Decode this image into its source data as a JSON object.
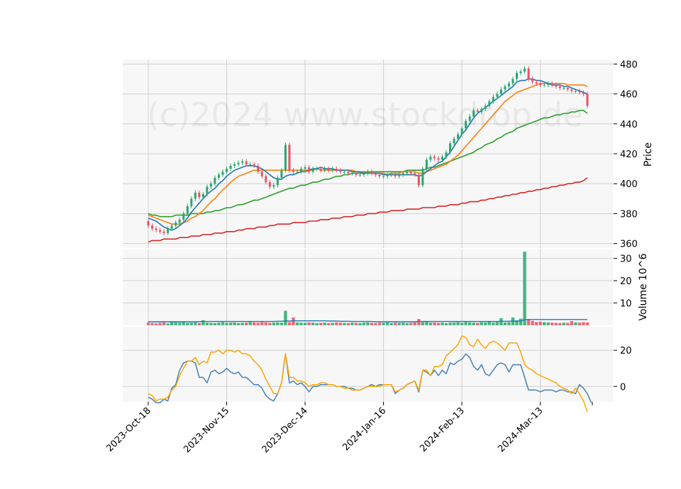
{
  "chart_data": {
    "type": "candlestick",
    "watermark": "(c)2024 www.stockdrop.de",
    "xticks": [
      "2023-Oct-18",
      "2023-Nov-15",
      "2023-Dec-14",
      "2024-Jan-16",
      "2024-Feb-13",
      "2024-Mar-13"
    ],
    "price_panel": {
      "ylabel": "Price",
      "ylim": [
        357,
        483
      ],
      "yticks": [
        "360",
        "380",
        "400",
        "420",
        "440",
        "460",
        "480"
      ],
      "close": [
        372,
        370,
        369,
        368,
        367,
        370,
        372,
        374,
        376,
        380,
        385,
        390,
        394,
        391,
        393,
        398,
        400,
        404,
        406,
        408,
        410,
        412,
        413,
        414,
        415,
        413,
        413,
        412,
        408,
        405,
        401,
        398,
        399,
        404,
        409,
        426,
        409,
        408,
        408,
        410,
        411,
        408,
        410,
        410,
        409,
        410,
        409,
        410,
        409,
        408,
        408,
        407,
        407,
        406,
        406,
        407,
        408,
        407,
        406,
        405,
        405,
        406,
        406,
        405,
        406,
        407,
        408,
        407,
        406,
        399,
        410,
        416,
        418,
        417,
        416,
        418,
        421,
        427,
        430,
        433,
        437,
        442,
        445,
        449,
        448,
        450,
        452,
        455,
        458,
        460,
        463,
        465,
        467,
        470,
        474,
        475,
        477,
        470,
        468,
        467,
        466,
        466,
        467,
        466,
        465,
        464,
        464,
        463,
        462,
        462,
        461,
        460,
        452
      ],
      "series": [
        {
          "name": "MA10",
          "color": "#1f77b4",
          "values": [
            377,
            376,
            375,
            373,
            371,
            370,
            369,
            370,
            372,
            374,
            377,
            381,
            384,
            387,
            390,
            393,
            395,
            397,
            400,
            402,
            405,
            407,
            409,
            410,
            411,
            412,
            412,
            412,
            411,
            410,
            408,
            406,
            404,
            403,
            403,
            405,
            406,
            406,
            407,
            408,
            408,
            409,
            410,
            410,
            411,
            410,
            410,
            410,
            409,
            409,
            409,
            409,
            408,
            408,
            408,
            407,
            407,
            407,
            407,
            407,
            406,
            406,
            406,
            406,
            406,
            406,
            406,
            406,
            406,
            405,
            406,
            408,
            410,
            412,
            414,
            415,
            418,
            421,
            425,
            429,
            433,
            436,
            440,
            444,
            447,
            449,
            451,
            453,
            455,
            457,
            459,
            461,
            463,
            465,
            468,
            469,
            469,
            470,
            470,
            469,
            469,
            468,
            467,
            466,
            466,
            466,
            465,
            465,
            464,
            463,
            462,
            461,
            460
          ]
        },
        {
          "name": "MA20",
          "color": "#ff7f0e",
          "values": [
            379,
            378,
            377,
            376,
            375,
            374,
            373,
            373,
            373,
            374,
            375,
            377,
            378,
            380,
            382,
            385,
            388,
            390,
            393,
            396,
            398,
            401,
            403,
            405,
            406,
            407,
            408,
            409,
            409,
            409,
            409,
            409,
            409,
            409,
            409,
            409,
            409,
            409,
            409,
            409,
            409,
            409,
            409,
            410,
            409,
            409,
            409,
            409,
            409,
            409,
            409,
            409,
            409,
            408,
            408,
            408,
            408,
            407,
            407,
            407,
            407,
            406,
            407,
            407,
            407,
            408,
            408,
            408,
            408,
            407,
            407,
            408,
            409,
            410,
            411,
            412,
            413,
            415,
            417,
            419,
            422,
            425,
            428,
            431,
            434,
            437,
            440,
            443,
            446,
            449,
            452,
            455,
            457,
            459,
            461,
            462,
            463,
            464,
            465,
            466,
            467,
            467,
            467,
            467,
            467,
            467,
            467,
            466,
            466,
            466,
            466,
            466,
            465
          ]
        },
        {
          "name": "MA50",
          "color": "#2ca02c",
          "values": [
            380,
            379,
            379,
            378,
            378,
            378,
            378,
            379,
            379,
            379,
            379,
            380,
            380,
            380,
            380,
            381,
            381,
            382,
            382,
            383,
            384,
            384,
            385,
            386,
            386,
            387,
            388,
            389,
            389,
            390,
            391,
            392,
            393,
            394,
            395,
            396,
            397,
            397,
            398,
            399,
            399,
            400,
            401,
            401,
            402,
            403,
            403,
            404,
            405,
            405,
            406,
            406,
            407,
            407,
            407,
            407,
            408,
            408,
            408,
            408,
            408,
            408,
            408,
            408,
            408,
            408,
            409,
            409,
            409,
            409,
            409,
            410,
            411,
            411,
            412,
            413,
            414,
            415,
            416,
            417,
            418,
            419,
            420,
            421,
            423,
            424,
            426,
            427,
            428,
            430,
            431,
            433,
            434,
            435,
            437,
            438,
            439,
            440,
            441,
            442,
            443,
            444,
            444,
            445,
            446,
            446,
            447,
            447,
            448,
            448,
            449,
            449,
            447
          ]
        },
        {
          "name": "MA200",
          "color": "#d62728",
          "values": [
            361,
            362,
            362,
            362,
            363,
            363,
            363,
            363,
            364,
            364,
            364,
            365,
            365,
            365,
            366,
            366,
            366,
            367,
            367,
            367,
            368,
            368,
            368,
            369,
            369,
            370,
            370,
            370,
            371,
            371,
            371,
            372,
            372,
            373,
            373,
            373,
            373,
            374,
            374,
            374,
            374,
            375,
            375,
            375,
            376,
            376,
            376,
            377,
            377,
            377,
            378,
            378,
            378,
            379,
            379,
            379,
            380,
            380,
            380,
            381,
            381,
            381,
            382,
            382,
            382,
            382,
            383,
            383,
            383,
            383,
            384,
            384,
            384,
            384,
            385,
            385,
            385,
            386,
            386,
            386,
            387,
            387,
            388,
            388,
            388,
            389,
            389,
            390,
            390,
            391,
            391,
            392,
            392,
            393,
            393,
            394,
            394,
            395,
            395,
            396,
            396,
            397,
            397,
            398,
            398,
            399,
            399,
            400,
            400,
            401,
            401,
            402,
            404
          ]
        }
      ]
    },
    "volume_panel": {
      "ylabel": "Volume  10^6",
      "ylim": [
        0,
        34
      ],
      "yticks": [
        "10",
        "20",
        "30"
      ],
      "values": [
        1.2,
        1.0,
        0.9,
        1.1,
        1.3,
        0.8,
        1.4,
        1.3,
        1.2,
        1.5,
        1.1,
        1.2,
        1.3,
        1.0,
        2.3,
        1.2,
        1.1,
        1.0,
        1.2,
        1.4,
        1.1,
        1.2,
        1.3,
        1.0,
        1.1,
        1.2,
        1.5,
        1.3,
        1.2,
        1.4,
        1.3,
        1.1,
        1.2,
        1.3,
        1.2,
        6.5,
        1.4,
        3.5,
        1.3,
        1.2,
        1.1,
        1.3,
        1.2,
        1.0,
        1.1,
        1.2,
        1.0,
        1.1,
        1.3,
        1.2,
        1.1,
        1.0,
        1.2,
        1.1,
        1.0,
        1.2,
        1.3,
        1.1,
        1.0,
        1.2,
        1.1,
        1.3,
        1.0,
        1.2,
        1.1,
        1.2,
        1.0,
        1.1,
        1.3,
        2.8,
        1.4,
        1.6,
        1.2,
        1.3,
        1.1,
        1.2,
        1.0,
        1.2,
        1.3,
        1.4,
        1.1,
        1.5,
        1.3,
        1.2,
        1.1,
        1.4,
        1.3,
        1.6,
        1.2,
        1.5,
        3.2,
        1.3,
        1.4,
        3.5,
        2.2,
        3.0,
        33,
        2.5,
        2.0,
        1.5,
        1.6,
        1.4,
        1.3,
        1.2,
        1.1,
        1.0,
        1.2,
        1.1,
        1.9,
        1.3,
        1.2,
        1.4,
        1.3
      ],
      "avg_values": [
        1.6,
        1.6,
        1.6,
        1.6,
        1.6,
        1.6,
        1.6,
        1.6,
        1.6,
        1.6,
        1.6,
        1.6,
        1.6,
        1.6,
        1.7,
        1.7,
        1.7,
        1.7,
        1.7,
        1.7,
        1.7,
        1.7,
        1.7,
        1.7,
        1.7,
        1.7,
        1.7,
        1.7,
        1.7,
        1.7,
        1.7,
        1.7,
        1.7,
        1.8,
        1.8,
        1.9,
        1.9,
        2.0,
        2.0,
        2.0,
        2.0,
        2.0,
        2.0,
        2.0,
        2.0,
        2.0,
        1.9,
        1.9,
        1.9,
        1.8,
        1.8,
        1.8,
        1.7,
        1.7,
        1.7,
        1.7,
        1.7,
        1.7,
        1.6,
        1.6,
        1.6,
        1.6,
        1.6,
        1.6,
        1.6,
        1.6,
        1.6,
        1.6,
        1.6,
        1.7,
        1.7,
        1.7,
        1.7,
        1.7,
        1.7,
        1.7,
        1.7,
        1.7,
        1.7,
        1.7,
        1.7,
        1.7,
        1.7,
        1.7,
        1.7,
        1.7,
        1.7,
        1.7,
        1.7,
        1.7,
        1.8,
        1.8,
        1.8,
        1.9,
        1.9,
        1.9,
        2.5,
        2.6,
        2.6,
        2.6,
        2.6,
        2.6,
        2.6,
        2.6,
        2.6,
        2.6,
        2.6,
        2.6,
        2.6,
        2.6,
        2.6,
        2.6,
        2.6
      ],
      "avg_color": "#1f77b4"
    },
    "indicator_panel": {
      "ylim": [
        -8.5,
        33
      ],
      "yticks": [
        "0",
        "20"
      ],
      "series": [
        {
          "name": "MACD",
          "color": "#4682b4",
          "values": [
            -6,
            -7,
            -9,
            -9,
            -7,
            -8,
            -1,
            1,
            9,
            13,
            14,
            14,
            13,
            5,
            5,
            2,
            8,
            9,
            7,
            8,
            10,
            8,
            7,
            8,
            5,
            5,
            3,
            1,
            1,
            -1,
            -5,
            -7,
            -8,
            -4,
            2,
            18,
            2,
            3,
            1,
            2,
            0,
            -3,
            0,
            0,
            1,
            1,
            1,
            1,
            0,
            0,
            0,
            -1,
            -1,
            -2,
            -2,
            -1,
            0,
            1,
            0,
            1,
            1,
            1,
            1,
            -4,
            -2,
            -1,
            1,
            2,
            3,
            -3,
            9,
            8,
            6,
            9,
            6,
            9,
            7,
            13,
            12,
            14,
            15,
            18,
            16,
            11,
            9,
            12,
            7,
            6,
            9,
            12,
            13,
            12,
            8,
            12,
            12,
            12,
            5,
            -2,
            -2,
            -2,
            -3,
            -2,
            -2,
            -2,
            -3,
            -2,
            -2,
            -3,
            -3,
            -4,
            1,
            -1,
            -4,
            -9
          ]
        },
        {
          "name": "Signal",
          "color": "#ffa500",
          "values": [
            -4,
            -5,
            -8,
            -7,
            -7,
            -6,
            -2,
            0,
            6,
            10,
            14,
            14,
            16,
            12,
            14,
            13,
            19,
            19,
            20,
            18,
            20,
            20,
            19,
            20,
            18,
            18,
            17,
            14,
            12,
            9,
            4,
            0,
            -4,
            -4,
            2,
            18,
            5,
            5,
            3,
            3,
            2,
            0,
            1,
            1,
            2,
            2,
            1,
            1,
            0,
            0,
            -1,
            -1,
            -2,
            -2,
            -2,
            -1,
            0,
            0,
            0,
            0,
            1,
            1,
            1,
            -3,
            -2,
            -1,
            1,
            2,
            3,
            -2,
            9,
            9,
            6,
            11,
            11,
            12,
            17,
            19,
            21,
            23,
            28,
            27,
            23,
            22,
            26,
            23,
            21,
            24,
            25,
            24,
            22,
            20,
            24,
            24,
            24,
            19,
            12,
            10,
            9,
            7,
            6,
            5,
            4,
            3,
            2,
            0,
            -1,
            -2,
            -4,
            -1,
            -4,
            -8,
            -14
          ]
        }
      ]
    }
  }
}
